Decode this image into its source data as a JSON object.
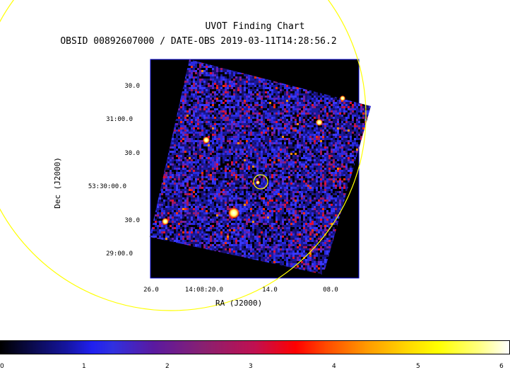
{
  "title": "UVOT Finding Chart",
  "subtitle": "OBSID 00892607000 / DATE-OBS 2019-03-11T14:28:56.2",
  "axes": {
    "xlabel": "RA (J2000)",
    "ylabel": "Dec (J2000)",
    "x_ticks": [
      "26.0",
      "14:08:20.0",
      "14.0",
      "08.0"
    ],
    "y_ticks": [
      "30.0",
      "31:00.0",
      "30.0",
      "53:30:00.0",
      "30.0",
      "29:00.0"
    ]
  },
  "colorbar": {
    "ticks": [
      "0",
      "1",
      "2",
      "3",
      "4",
      "5",
      "6"
    ]
  },
  "colors": {
    "frame": "#000000",
    "border": "#0000cc",
    "circle": "#ffff00"
  },
  "bright_sources": [
    {
      "name": "source-1",
      "label": ""
    },
    {
      "name": "source-2",
      "label": ""
    },
    {
      "name": "source-3",
      "label": ""
    },
    {
      "name": "source-4",
      "label": ""
    },
    {
      "name": "source-5",
      "label": ""
    }
  ]
}
